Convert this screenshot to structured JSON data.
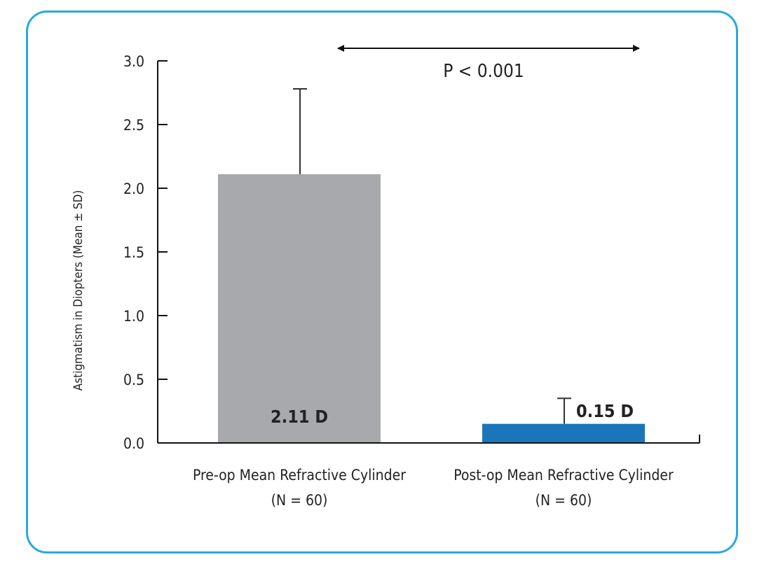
{
  "chart_data": {
    "type": "bar",
    "ylabel": "Astigmatism in Diopters (Mean ± SD)",
    "ylim": [
      0,
      3.0
    ],
    "yticks": [
      "0.0",
      "0.5",
      "1.0",
      "1.5",
      "2.0",
      "2.5",
      "3.0"
    ],
    "categories": [
      [
        "Pre-op Mean Refractive Cylinder",
        "(N = 60)"
      ],
      [
        "Post-op Mean Refractive Cylinder",
        "(N = 60)"
      ]
    ],
    "values": [
      2.11,
      0.15
    ],
    "error_upper": [
      2.78,
      0.35
    ],
    "value_labels": [
      "2.11 D",
      "0.15 D"
    ],
    "colors": [
      "#a7a9ac",
      "#1b75bb"
    ],
    "annotation": "P < 0.001",
    "grid": false,
    "frame_color": "#29a9e0"
  }
}
